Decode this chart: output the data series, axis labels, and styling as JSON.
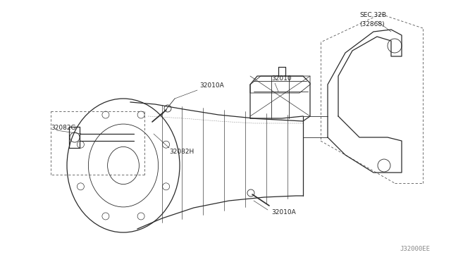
{
  "bg_color": "#ffffff",
  "line_color": "#2a2a2a",
  "dash_color": "#555555",
  "label_color": "#222222",
  "fig_width": 6.4,
  "fig_height": 3.72,
  "dpi": 100,
  "watermark": "J32000EE",
  "lw_main": 0.9,
  "lw_thin": 0.6,
  "lw_dash": 0.6,
  "font_size": 6.5,
  "labels": {
    "32010A_top": "32010A",
    "32082G": "32082G",
    "32082H": "32082H",
    "32010": "32010",
    "SEC328": "SEC.32B",
    "32868": "(32868)",
    "32010A_bot": "32010A"
  }
}
